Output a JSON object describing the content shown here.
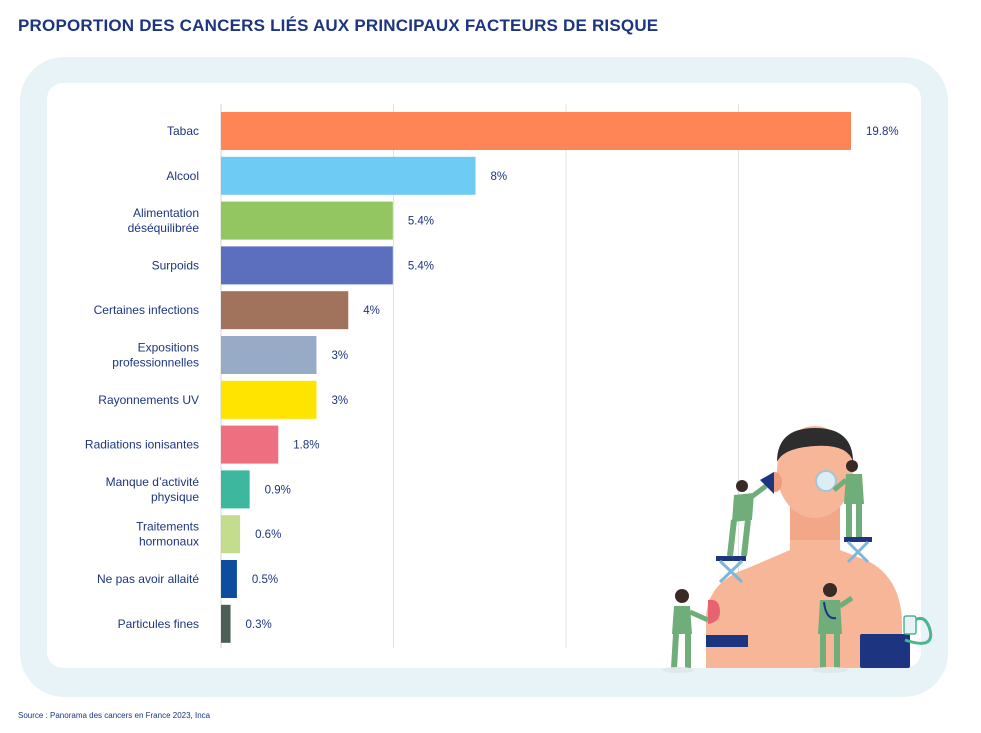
{
  "title": "PROPORTION DES CANCERS LIÉS AUX PRINCIPAUX FACTEURS DE RISQUE",
  "source": "Source : Panorama des cancers en France 2023, Inca",
  "chart_data": {
    "type": "bar",
    "orientation": "horizontal",
    "title": "PROPORTION DES CANCERS LIÉS AUX PRINCIPAUX FACTEURS DE RISQUE",
    "unit": "%",
    "xlim": [
      0,
      20
    ],
    "grid": true,
    "categories": [
      [
        "Tabac"
      ],
      [
        "Alcool"
      ],
      [
        "Alimentation",
        "déséquilibrée"
      ],
      [
        "Surpoids"
      ],
      [
        "Certaines infections"
      ],
      [
        "Expositions",
        "professionnelles"
      ],
      [
        "Rayonnements UV"
      ],
      [
        "Radiations ionisantes"
      ],
      [
        "Manque d’activité",
        "physique"
      ],
      [
        "Traitements",
        "hormonaux"
      ],
      [
        "Ne pas avoir allaité"
      ],
      [
        "Particules fines"
      ]
    ],
    "values": [
      19.8,
      8,
      5.4,
      5.4,
      4,
      3,
      3,
      1.8,
      0.9,
      0.6,
      0.5,
      0.3
    ],
    "value_labels": [
      "19.8%",
      "8%",
      "5.4%",
      "5.4%",
      "4%",
      "3%",
      "3%",
      "1.8%",
      "0.9%",
      "0.6%",
      "0.5%",
      "0.3%"
    ],
    "colors": [
      "#ff8456",
      "#6ecbf3",
      "#93c661",
      "#5b6fbe",
      "#a1735c",
      "#97aac6",
      "#ffe400",
      "#ee6f80",
      "#3db79d",
      "#c3dc8d",
      "#0e4ca0",
      "#4c5e55"
    ]
  }
}
